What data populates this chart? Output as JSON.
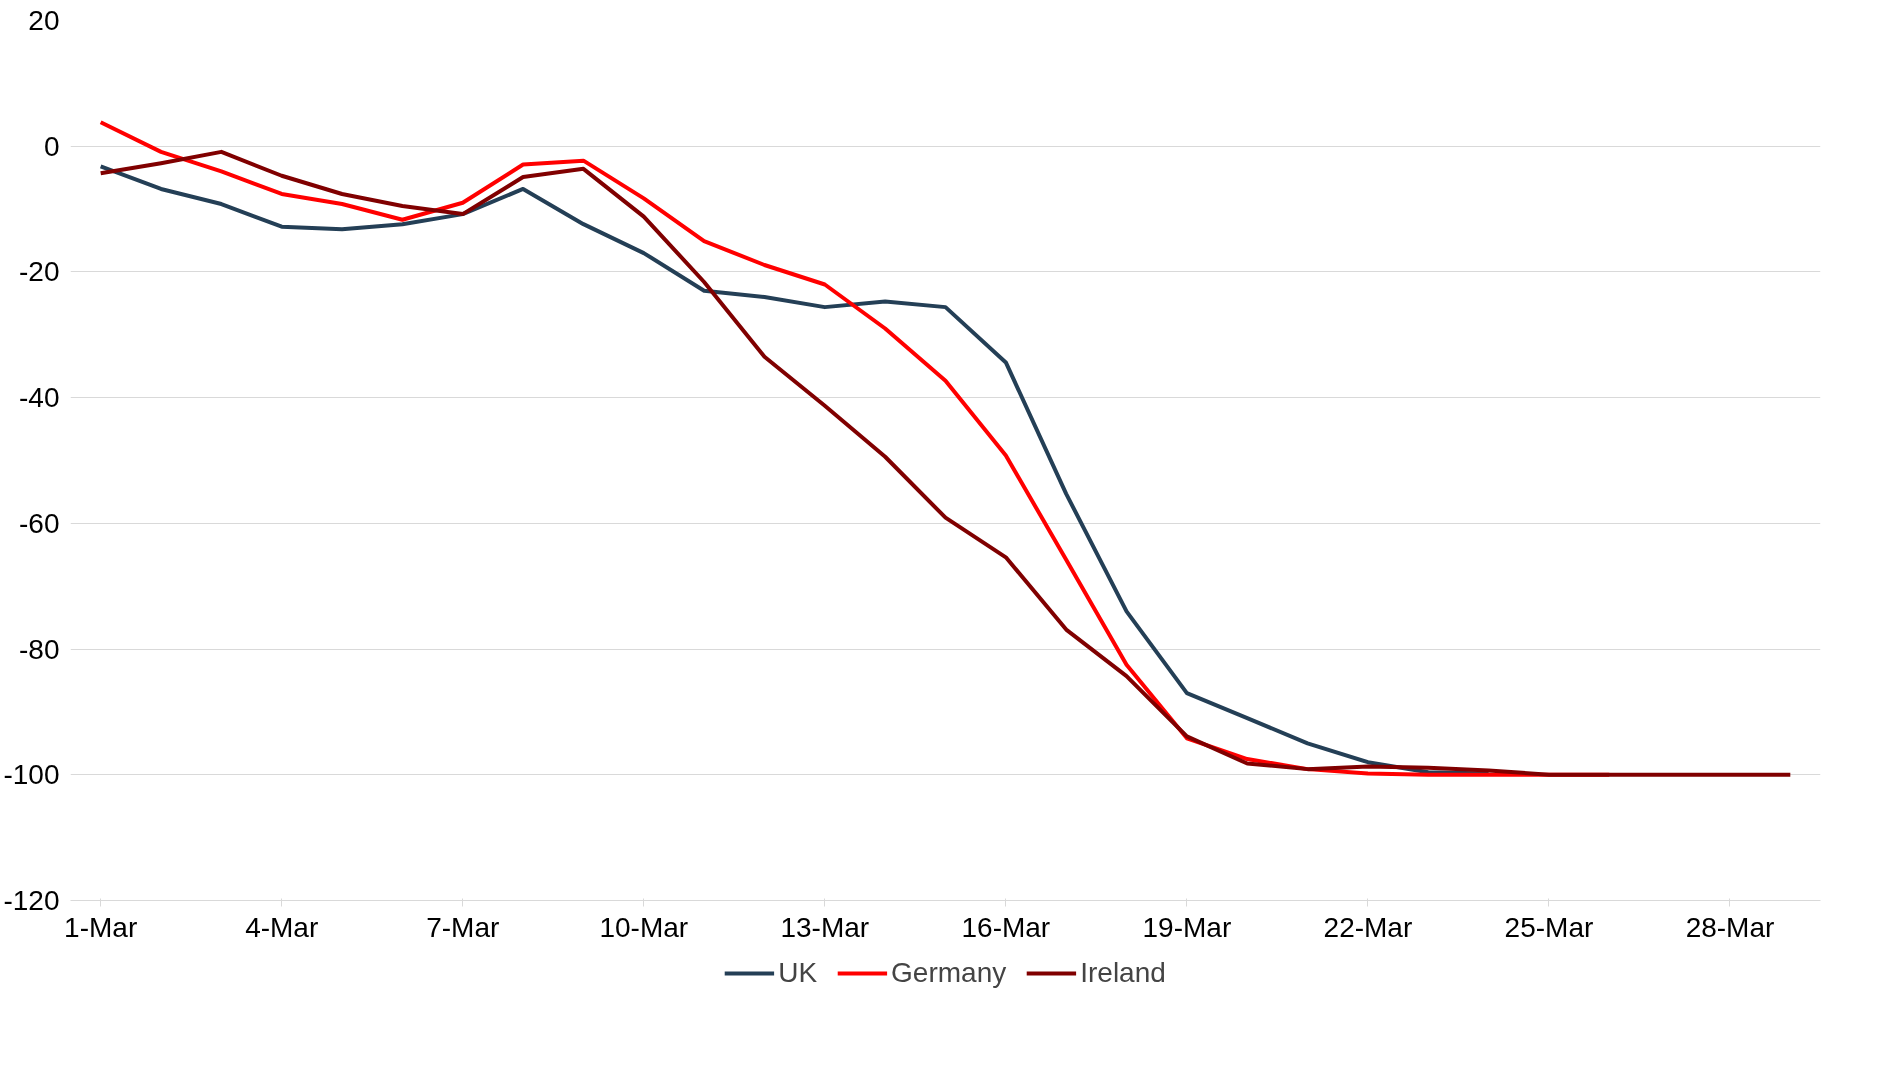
{
  "chart_data": {
    "type": "line",
    "categories": [
      "1-Mar",
      null,
      null,
      "4-Mar",
      null,
      null,
      "7-Mar",
      null,
      null,
      "10-Mar",
      null,
      null,
      "13-Mar",
      null,
      null,
      "16-Mar",
      null,
      null,
      "19-Mar",
      null,
      null,
      "22-Mar",
      null,
      null,
      "25-Mar",
      null,
      null,
      "28-Mar",
      null
    ],
    "series": [
      {
        "name": "UK",
        "color": "#243f56",
        "values": [
          -3.2,
          -6.8,
          -9.2,
          -12.8,
          -13.2,
          -12.4,
          -10.8,
          -6.8,
          -12.4,
          -17,
          -23,
          -24,
          -25.6,
          -24.7,
          -25.6,
          -34.4,
          -55.3,
          -74,
          -87,
          -91,
          -95,
          -98,
          -99.6,
          -99.8,
          null,
          null,
          null,
          null,
          null
        ]
      },
      {
        "name": "Germany",
        "color": "#ff0000",
        "values": [
          3.8,
          -0.9,
          -4,
          -7.6,
          -9.2,
          -11.7,
          -9,
          -2.9,
          -2.3,
          -8.3,
          -15.1,
          -18.9,
          -22,
          -29,
          -37.3,
          -49.2,
          -65.8,
          -82.5,
          -94.2,
          -97.5,
          -99.1,
          -99.8,
          -100,
          -100,
          -100,
          -100,
          null,
          null,
          null
        ]
      },
      {
        "name": "Ireland",
        "color": "#800000",
        "values": [
          -4.3,
          -2.7,
          -0.9,
          -4.7,
          -7.6,
          -9.5,
          -10.8,
          -4.9,
          -3.6,
          -11.2,
          -21.6,
          -33.5,
          -41.3,
          -49.4,
          -59.1,
          -65.4,
          -76.9,
          -84.3,
          -93.9,
          -98.2,
          -99.1,
          -98.7,
          -98.9,
          -99.3,
          -100,
          -100,
          -100,
          -100,
          -100
        ]
      }
    ],
    "ylim": [
      -120,
      20
    ],
    "yticks": [
      -120,
      -100,
      -80,
      -60,
      -40,
      -20,
      0,
      20
    ],
    "grid": "y",
    "legend": "bottom",
    "marker": "none",
    "line_style": "solid"
  }
}
